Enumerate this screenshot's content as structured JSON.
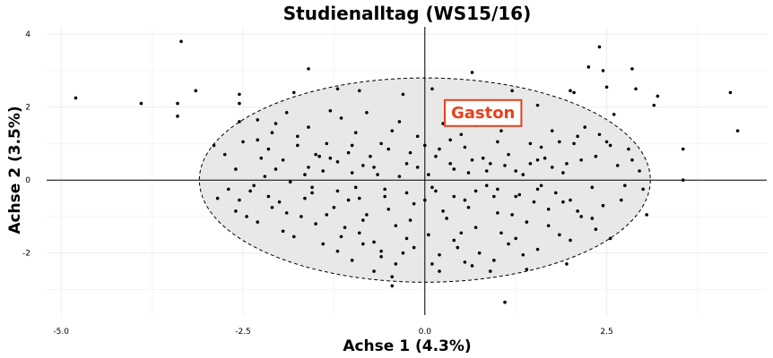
{
  "chart_data": {
    "type": "scatter",
    "title": "Studienalltag (WS15/16)",
    "xlabel": "Achse 1 (4.3%)",
    "ylabel": "Achse 2 (3.5%)",
    "xlim": [
      -5.2,
      4.7
    ],
    "ylim": [
      -3.7,
      4.2
    ],
    "x_ticks": [
      -5.0,
      -2.5,
      0.0,
      2.5
    ],
    "x_tick_labels": [
      "-5.0",
      "-2.5",
      "0.0",
      "2.5"
    ],
    "y_ticks": [
      -2,
      0,
      2,
      4
    ],
    "y_tick_labels": [
      "-2",
      "0",
      "2",
      "4"
    ],
    "grid": true,
    "ellipse": {
      "center": [
        0,
        0
      ],
      "semi_axes": [
        3.1,
        2.8
      ],
      "style": "dashed",
      "fill": "#e8e8e8"
    },
    "highlight_label": {
      "text": "Gaston",
      "x": 0.8,
      "y": 1.85,
      "color": "#e8401c"
    },
    "points": [
      [
        -4.8,
        2.25
      ],
      [
        -3.9,
        2.1
      ],
      [
        -3.35,
        3.8
      ],
      [
        -3.15,
        2.45
      ],
      [
        -3.4,
        2.1
      ],
      [
        -3.4,
        1.75
      ],
      [
        -1.6,
        3.05
      ],
      [
        -2.55,
        2.35
      ],
      [
        -2.55,
        2.1
      ],
      [
        -2.55,
        1.6
      ],
      [
        -1.8,
        2.4
      ],
      [
        -1.2,
        2.5
      ],
      [
        -0.9,
        2.45
      ],
      [
        -0.3,
        2.35
      ],
      [
        0.1,
        2.5
      ],
      [
        0.65,
        2.95
      ],
      [
        1.2,
        2.45
      ],
      [
        1.55,
        2.05
      ],
      [
        2.0,
        2.45
      ],
      [
        2.05,
        2.4
      ],
      [
        2.4,
        3.65
      ],
      [
        2.25,
        3.1
      ],
      [
        2.45,
        3.0
      ],
      [
        2.5,
        2.55
      ],
      [
        2.85,
        3.05
      ],
      [
        2.9,
        2.5
      ],
      [
        3.15,
        2.05
      ],
      [
        3.2,
        2.3
      ],
      [
        4.2,
        2.4
      ],
      [
        4.3,
        1.35
      ],
      [
        3.55,
        0.85
      ],
      [
        3.55,
        0.0
      ],
      [
        3.05,
        -0.95
      ],
      [
        3.0,
        -0.25
      ],
      [
        2.75,
        -0.15
      ],
      [
        2.55,
        -1.6
      ],
      [
        2.35,
        -1.35
      ],
      [
        1.95,
        -2.3
      ],
      [
        1.4,
        -2.45
      ],
      [
        1.1,
        -3.35
      ],
      [
        0.9,
        -2.5
      ],
      [
        0.55,
        -2.25
      ],
      [
        0.2,
        -2.5
      ],
      [
        -0.45,
        -2.9
      ],
      [
        -0.45,
        -2.65
      ],
      [
        -0.7,
        -2.5
      ],
      [
        -1.4,
        -1.75
      ],
      [
        -1.95,
        -1.4
      ],
      [
        -2.3,
        -1.15
      ],
      [
        -2.55,
        -0.55
      ],
      [
        -2.7,
        -0.25
      ],
      [
        -2.9,
        0.95
      ],
      [
        -2.3,
        1.1
      ],
      [
        -2.15,
        0.85
      ],
      [
        -2.05,
        0.3
      ],
      [
        -1.9,
        1.85
      ],
      [
        -1.75,
        0.95
      ],
      [
        -1.6,
        1.45
      ],
      [
        -1.5,
        0.7
      ],
      [
        -1.3,
        1.9
      ],
      [
        -1.2,
        0.5
      ],
      [
        -1.05,
        0.75
      ],
      [
        -0.95,
        1.3
      ],
      [
        -0.8,
        1.85
      ],
      [
        -0.65,
        0.15
      ],
      [
        -0.5,
        0.85
      ],
      [
        -0.35,
        1.6
      ],
      [
        -0.25,
        0.45
      ],
      [
        -0.1,
        1.2
      ],
      [
        0.0,
        0.95
      ],
      [
        0.15,
        0.65
      ],
      [
        0.25,
        1.55
      ],
      [
        0.4,
        0.3
      ],
      [
        0.55,
        0.9
      ],
      [
        0.7,
        1.5
      ],
      [
        0.85,
        0.25
      ],
      [
        1.0,
        1.05
      ],
      [
        1.15,
        0.7
      ],
      [
        1.3,
        1.6
      ],
      [
        1.45,
        0.45
      ],
      [
        1.6,
        0.9
      ],
      [
        1.75,
        1.35
      ],
      [
        1.9,
        0.2
      ],
      [
        2.05,
        1.0
      ],
      [
        2.2,
        1.45
      ],
      [
        2.35,
        0.65
      ],
      [
        2.5,
        1.05
      ],
      [
        2.65,
        0.4
      ],
      [
        2.8,
        0.85
      ],
      [
        2.95,
        0.25
      ],
      [
        -2.85,
        -0.5
      ],
      [
        -2.6,
        0.3
      ],
      [
        -2.4,
        -0.3
      ],
      [
        -2.2,
        0.1
      ],
      [
        -2.0,
        -0.6
      ],
      [
        -1.85,
        -0.05
      ],
      [
        -1.7,
        -1.0
      ],
      [
        -1.55,
        -0.35
      ],
      [
        -1.4,
        0.25
      ],
      [
        -1.25,
        -0.75
      ],
      [
        -1.1,
        -1.3
      ],
      [
        -0.95,
        -0.2
      ],
      [
        -0.8,
        -0.95
      ],
      [
        -0.7,
        -1.7
      ],
      [
        -0.55,
        -0.45
      ],
      [
        -0.4,
        -1.25
      ],
      [
        -0.3,
        -2.0
      ],
      [
        -0.15,
        -0.65
      ],
      [
        0.05,
        -1.5
      ],
      [
        0.15,
        -0.3
      ],
      [
        0.3,
        -1.05
      ],
      [
        0.45,
        -1.85
      ],
      [
        0.55,
        -0.55
      ],
      [
        0.7,
        -1.3
      ],
      [
        0.85,
        -0.15
      ],
      [
        1.0,
        -0.9
      ],
      [
        1.15,
        -1.75
      ],
      [
        1.25,
        -0.45
      ],
      [
        1.4,
        -1.15
      ],
      [
        1.55,
        -0.25
      ],
      [
        1.7,
        -0.8
      ],
      [
        1.85,
        -1.5
      ],
      [
        2.0,
        -0.55
      ],
      [
        2.15,
        -1.0
      ],
      [
        2.3,
        -0.2
      ],
      [
        2.45,
        -0.7
      ],
      [
        -2.3,
        1.65
      ],
      [
        -2.1,
        1.3
      ],
      [
        -1.95,
        0.55
      ],
      [
        -1.65,
        0.15
      ],
      [
        -1.35,
        1.0
      ],
      [
        -1.15,
        1.7
      ],
      [
        -0.85,
        0.4
      ],
      [
        -0.6,
        1.0
      ],
      [
        -0.2,
        0.75
      ],
      [
        0.35,
        1.1
      ],
      [
        0.65,
        0.55
      ],
      [
        1.05,
        1.35
      ],
      [
        1.35,
        0.15
      ],
      [
        1.65,
        0.6
      ],
      [
        1.85,
        1.05
      ],
      [
        2.15,
        0.55
      ],
      [
        2.4,
        1.25
      ],
      [
        2.6,
        1.8
      ],
      [
        -2.45,
        -1.0
      ],
      [
        -2.1,
        -0.75
      ],
      [
        -1.8,
        -1.55
      ],
      [
        -1.5,
        -1.2
      ],
      [
        -1.2,
        -1.95
      ],
      [
        -0.9,
        -1.45
      ],
      [
        -0.6,
        -2.1
      ],
      [
        -0.25,
        -1.6
      ],
      [
        0.1,
        -2.3
      ],
      [
        0.4,
        -1.65
      ],
      [
        0.75,
        -2.0
      ],
      [
        1.05,
        -1.45
      ],
      [
        1.35,
        -2.05
      ],
      [
        1.7,
        -1.25
      ],
      [
        2.0,
        -1.65
      ],
      [
        2.3,
        -1.05
      ],
      [
        2.7,
        -0.55
      ],
      [
        2.85,
        0.55
      ],
      [
        -2.75,
        0.7
      ],
      [
        -2.5,
        1.05
      ],
      [
        -2.25,
        0.6
      ],
      [
        -2.05,
        1.55
      ],
      [
        -1.75,
        1.2
      ],
      [
        -1.45,
        0.65
      ],
      [
        -1.0,
        0.95
      ],
      [
        -0.75,
        0.65
      ],
      [
        -0.45,
        1.35
      ],
      [
        -0.1,
        0.35
      ],
      [
        0.2,
        0.85
      ],
      [
        0.5,
        1.25
      ],
      [
        0.8,
        0.6
      ],
      [
        1.1,
        0.4
      ],
      [
        1.45,
        1.0
      ],
      [
        1.75,
        0.35
      ],
      [
        2.1,
        1.2
      ],
      [
        2.55,
        0.95
      ],
      [
        -2.6,
        -0.85
      ],
      [
        -2.35,
        -0.15
      ],
      [
        -2.15,
        -0.45
      ],
      [
        -1.9,
        -0.9
      ],
      [
        -1.65,
        -0.5
      ],
      [
        -1.35,
        -0.95
      ],
      [
        -1.05,
        -0.55
      ],
      [
        -0.85,
        -1.1
      ],
      [
        -0.5,
        -0.8
      ],
      [
        -0.2,
        -1.1
      ],
      [
        0.0,
        -0.55
      ],
      [
        0.25,
        -0.85
      ],
      [
        0.6,
        -0.75
      ],
      [
        0.95,
        -0.45
      ],
      [
        1.2,
        -0.95
      ],
      [
        1.5,
        -0.6
      ],
      [
        1.8,
        -0.35
      ],
      [
        2.1,
        -0.85
      ],
      [
        -1.6,
        0.35
      ],
      [
        -1.3,
        0.6
      ],
      [
        -1.0,
        0.2
      ],
      [
        -0.7,
        0.35
      ],
      [
        -0.35,
        0.1
      ],
      [
        0.05,
        0.15
      ],
      [
        0.35,
        0.45
      ],
      [
        0.6,
        0.2
      ],
      [
        0.9,
        0.45
      ],
      [
        1.25,
        0.25
      ],
      [
        1.55,
        0.55
      ],
      [
        1.95,
        0.45
      ],
      [
        -1.55,
        -0.2
      ],
      [
        -1.2,
        -0.3
      ],
      [
        -0.9,
        -0.5
      ],
      [
        -0.55,
        -0.25
      ],
      [
        -0.25,
        -0.35
      ],
      [
        0.1,
        -0.2
      ],
      [
        0.4,
        -0.45
      ],
      [
        0.7,
        -0.3
      ],
      [
        1.0,
        -0.25
      ],
      [
        1.3,
        -0.4
      ],
      [
        1.6,
        -0.15
      ],
      [
        1.9,
        -0.6
      ],
      [
        -0.6,
        -1.95
      ],
      [
        -0.4,
        -2.3
      ],
      [
        -0.15,
        -1.85
      ],
      [
        0.2,
        -2.05
      ],
      [
        0.5,
        -1.45
      ],
      [
        0.65,
        -2.35
      ],
      [
        -1.0,
        -2.2
      ],
      [
        -0.85,
        -1.75
      ],
      [
        -1.15,
        -1.55
      ],
      [
        1.25,
        -1.6
      ],
      [
        0.95,
        -2.2
      ],
      [
        1.55,
        -1.9
      ]
    ]
  }
}
